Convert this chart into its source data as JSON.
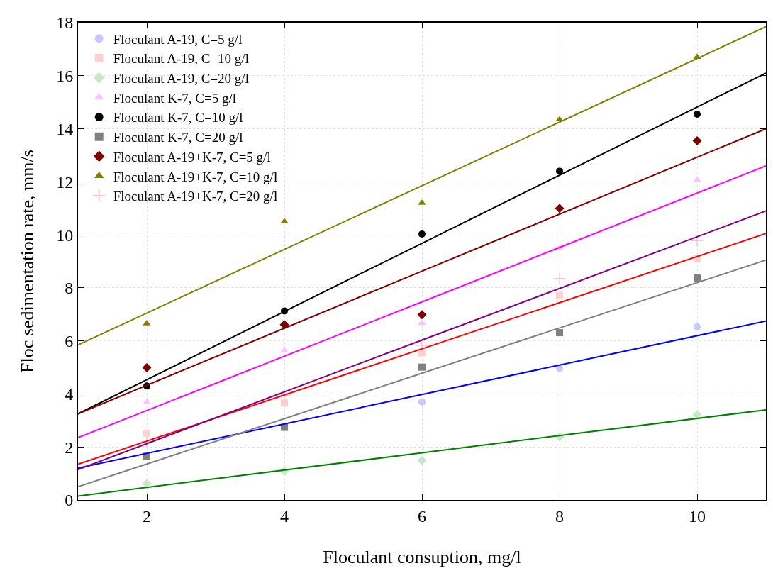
{
  "chart_data": {
    "type": "line",
    "xlabel": "Floculant consuption, mg/l",
    "ylabel": "Floc sedimentation rate, mm/s",
    "x": [
      2,
      4,
      6,
      8,
      10
    ],
    "xlim": [
      1,
      11
    ],
    "ylim": [
      0,
      18
    ],
    "xticks": [
      2,
      4,
      6,
      8,
      10
    ],
    "yticks": [
      0,
      2,
      4,
      6,
      8,
      10,
      12,
      14,
      16,
      18
    ],
    "grid": true,
    "legend": "top left",
    "series": [
      {
        "name": "Floculant A-19, C=5 g/l",
        "type": "scatter",
        "marker": "circle",
        "color": "#c8c8ff",
        "values": [
          null,
          null,
          3.7,
          4.96,
          6.53
        ]
      },
      {
        "name": "Floculant A-19, C=10 g/l",
        "type": "scatter",
        "marker": "square",
        "color": "#ffd0d0",
        "values": [
          2.52,
          3.66,
          5.55,
          7.72,
          9.1
        ]
      },
      {
        "name": "Floculant A-19, C=20 g/l",
        "type": "scatter",
        "marker": "diamond",
        "color": "#c8e8c8",
        "values": [
          0.62,
          1.08,
          1.49,
          2.38,
          3.22
        ]
      },
      {
        "name": "Floculant K-7, C=5 g/l",
        "type": "scatter",
        "marker": "triangle",
        "color": "#ffc0ff",
        "values": [
          3.69,
          5.64,
          6.67,
          9.5,
          12.06
        ]
      },
      {
        "name": "Floculant K-7, C=10 g/l",
        "type": "scatter",
        "marker": "circle",
        "color": "#000000",
        "values": [
          4.3,
          7.13,
          10.03,
          12.4,
          14.55
        ]
      },
      {
        "name": "Floculant K-7, C=20 g/l",
        "type": "scatter",
        "marker": "square",
        "color": "#808080",
        "values": [
          1.65,
          2.74,
          5.01,
          6.31,
          8.37
        ]
      },
      {
        "name": "Floculant A-19+K-7, C=5 g/l",
        "type": "scatter",
        "marker": "diamond",
        "color": "#800000",
        "values": [
          4.99,
          6.61,
          6.99,
          11.0,
          13.55
        ]
      },
      {
        "name": "Floculant A-19+K-7, C=10 g/l",
        "type": "scatter",
        "marker": "triangle",
        "color": "#808000",
        "values": [
          6.65,
          10.5,
          11.2,
          14.35,
          16.7
        ]
      },
      {
        "name": "Floculant A-19+K-7, C=20 g/l",
        "type": "scatter",
        "marker": "cross",
        "color": "#ffc0e0",
        "values": [
          2.2,
          3.96,
          5.83,
          8.35,
          9.78
        ]
      },
      {
        "color": "#0000ff",
        "x": [
          1,
          6,
          11
        ],
        "values": [
          1.2,
          3.98,
          6.75
        ]
      },
      {
        "color": "#ff0000",
        "x": [
          1,
          6,
          11
        ],
        "values": [
          1.35,
          5.7,
          10.05
        ]
      },
      {
        "color": "#008000",
        "x": [
          1,
          6,
          11
        ],
        "values": [
          0.15,
          1.78,
          3.4
        ]
      },
      {
        "color": "#ff00ff",
        "x": [
          1,
          6,
          11
        ],
        "values": [
          2.35,
          7.47,
          12.6
        ]
      },
      {
        "color": "#000000",
        "x": [
          1,
          6,
          11
        ],
        "values": [
          3.25,
          9.68,
          16.1
        ]
      },
      {
        "color": "#808080",
        "x": [
          1,
          6,
          11
        ],
        "values": [
          0.5,
          4.78,
          9.05
        ]
      },
      {
        "color": "#800000",
        "x": [
          1,
          6,
          11
        ],
        "values": [
          3.25,
          8.63,
          14.0
        ]
      },
      {
        "color": "#808000",
        "x": [
          1,
          6,
          11
        ],
        "values": [
          5.85,
          11.85,
          17.85
        ]
      },
      {
        "color": "#800080",
        "x": [
          1,
          6,
          11
        ],
        "values": [
          1.15,
          6.03,
          10.9
        ]
      }
    ]
  }
}
